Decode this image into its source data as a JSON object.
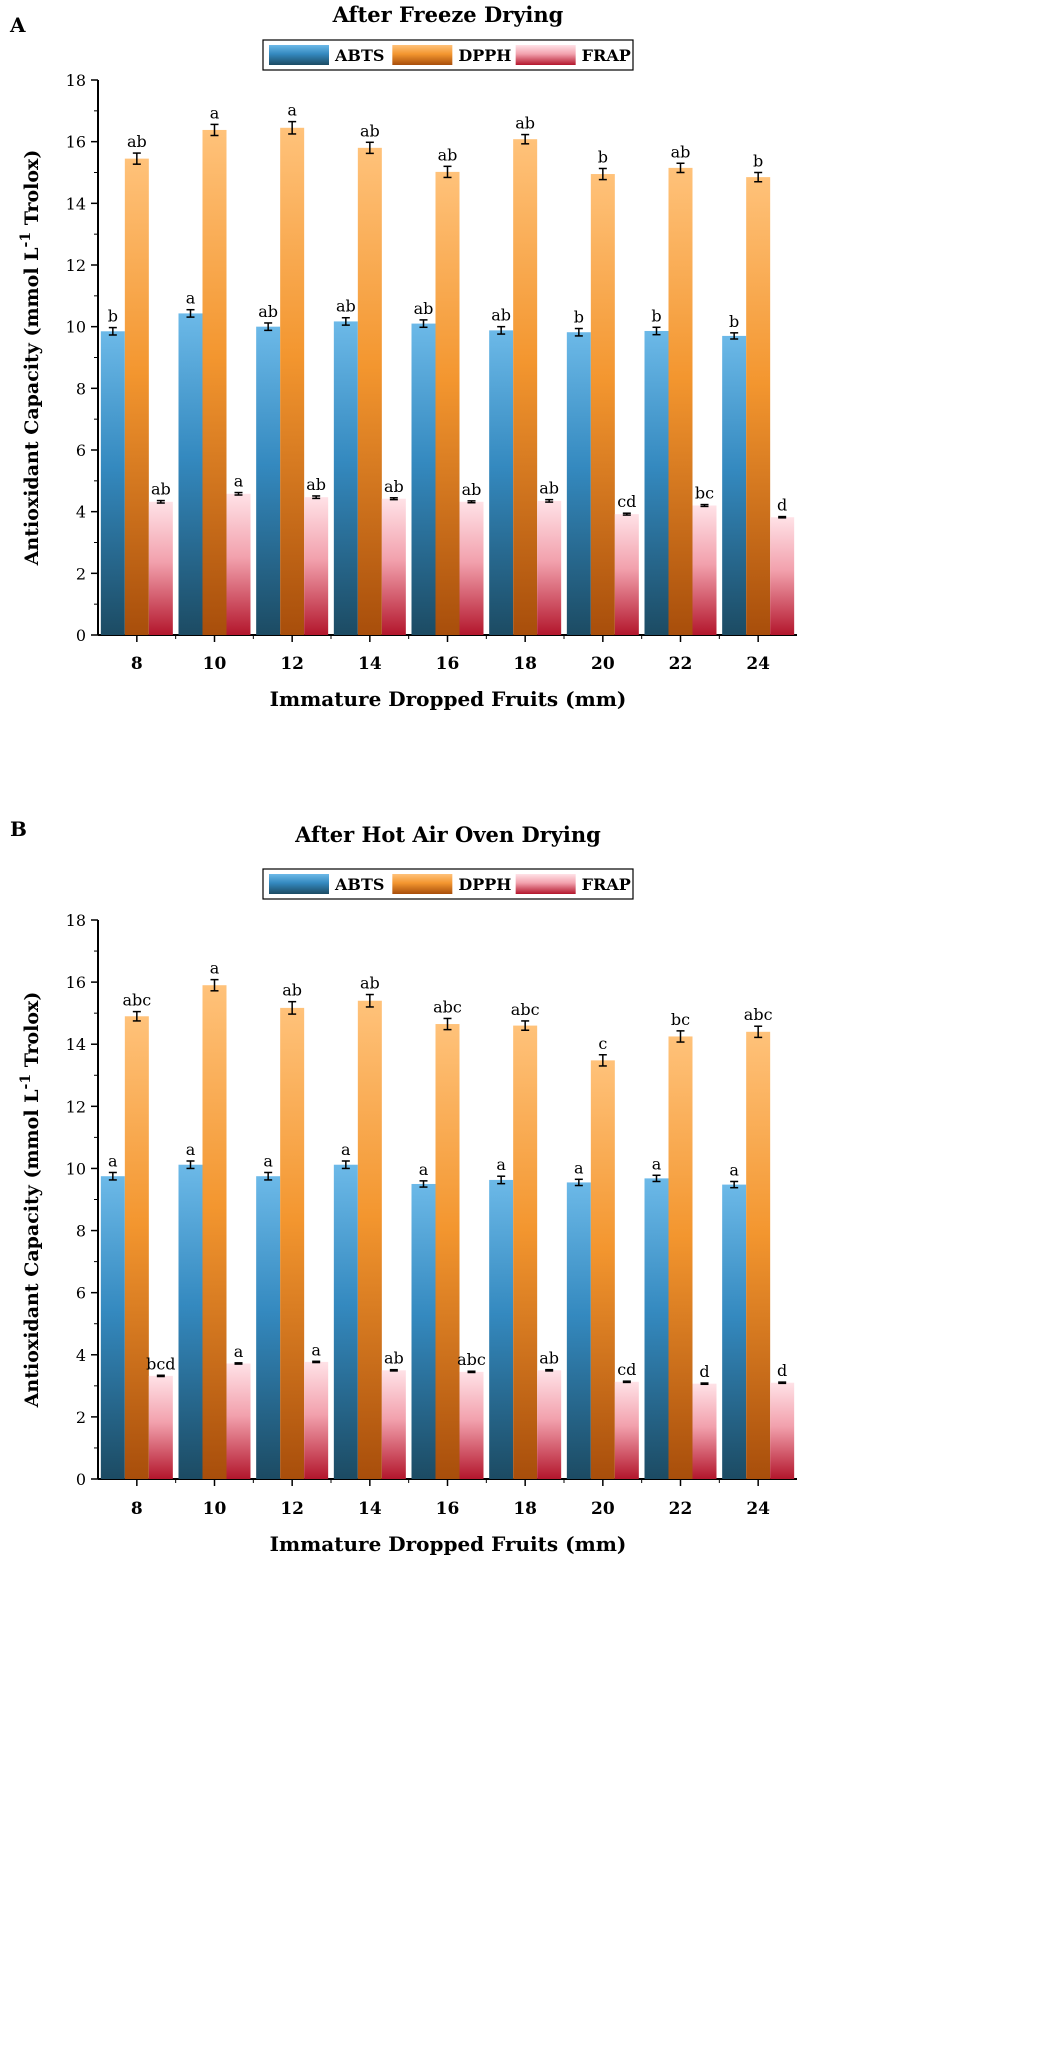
{
  "chart_data": [
    {
      "type": "bar",
      "panel": "A",
      "title": "After Freeze Drying",
      "xlabel": "Immature Dropped Fruits (mm)",
      "ylabel": "Antioxidant Capacity (mmol L",
      "ylabel_sup": "-1",
      "ylabel_end": " Trolox)",
      "ylim": [
        0,
        18
      ],
      "yticks": [
        0,
        2,
        4,
        6,
        8,
        10,
        12,
        14,
        16,
        18
      ],
      "categories": [
        "8",
        "10",
        "12",
        "14",
        "16",
        "18",
        "20",
        "22",
        "24"
      ],
      "legend_position": "top-center",
      "series": [
        {
          "name": "ABTS",
          "values": [
            9.85,
            10.43,
            10.0,
            10.17,
            10.1,
            9.88,
            9.82,
            9.86,
            9.7
          ],
          "errors": [
            0.12,
            0.12,
            0.12,
            0.12,
            0.12,
            0.12,
            0.12,
            0.12,
            0.1
          ],
          "labels": [
            "b",
            "a",
            "ab",
            "ab",
            "ab",
            "ab",
            "b",
            "b",
            "b"
          ]
        },
        {
          "name": "DPPH",
          "values": [
            15.45,
            16.38,
            16.45,
            15.8,
            15.02,
            16.08,
            14.95,
            15.15,
            14.85
          ],
          "errors": [
            0.18,
            0.18,
            0.2,
            0.18,
            0.18,
            0.15,
            0.18,
            0.15,
            0.15
          ],
          "labels": [
            "ab",
            "a",
            "a",
            "ab",
            "ab",
            "ab",
            "b",
            "ab",
            "b"
          ]
        },
        {
          "name": "FRAP",
          "values": [
            4.32,
            4.58,
            4.47,
            4.42,
            4.32,
            4.35,
            3.92,
            4.2,
            3.82
          ],
          "errors": [
            0.04,
            0.04,
            0.04,
            0.03,
            0.03,
            0.04,
            0.03,
            0.03,
            0.02
          ],
          "labels": [
            "ab",
            "a",
            "ab",
            "ab",
            "ab",
            "ab",
            "cd",
            "bc",
            "d"
          ]
        }
      ]
    },
    {
      "type": "bar",
      "panel": "B",
      "title": "After Hot Air Oven Drying",
      "xlabel": "Immature Dropped Fruits (mm)",
      "ylabel": "Antioxidant Capacity (mmol L",
      "ylabel_sup": "-1",
      "ylabel_end": " Trolox)",
      "ylim": [
        0,
        18
      ],
      "yticks": [
        0,
        2,
        4,
        6,
        8,
        10,
        12,
        14,
        16,
        18
      ],
      "categories": [
        "8",
        "10",
        "12",
        "14",
        "16",
        "18",
        "20",
        "22",
        "24"
      ],
      "legend_position": "top-center",
      "series": [
        {
          "name": "ABTS",
          "values": [
            9.75,
            10.12,
            9.75,
            10.12,
            9.5,
            9.63,
            9.55,
            9.68,
            9.48
          ],
          "errors": [
            0.12,
            0.12,
            0.12,
            0.12,
            0.1,
            0.12,
            0.1,
            0.1,
            0.1
          ],
          "labels": [
            "a",
            "a",
            "a",
            "a",
            "a",
            "a",
            "a",
            "a",
            "a"
          ]
        },
        {
          "name": "DPPH",
          "values": [
            14.9,
            15.9,
            15.17,
            15.4,
            14.65,
            14.6,
            13.48,
            14.25,
            14.4
          ],
          "errors": [
            0.15,
            0.18,
            0.2,
            0.2,
            0.18,
            0.15,
            0.18,
            0.18,
            0.18
          ],
          "labels": [
            "abc",
            "a",
            "ab",
            "ab",
            "abc",
            "abc",
            "c",
            "bc",
            "abc"
          ]
        },
        {
          "name": "FRAP",
          "values": [
            3.32,
            3.72,
            3.77,
            3.5,
            3.45,
            3.5,
            3.13,
            3.07,
            3.1
          ],
          "errors": [
            0.02,
            0.02,
            0.02,
            0.02,
            0.02,
            0.02,
            0.02,
            0.02,
            0.02
          ],
          "labels": [
            "bcd",
            "a",
            "a",
            "ab",
            "abc",
            "ab",
            "cd",
            "d",
            "d"
          ]
        }
      ]
    }
  ],
  "colors": {
    "ABTS": {
      "light": "#6cb9e8",
      "mid": "#3489bf",
      "dark": "#1c4b63"
    },
    "DPPH": {
      "light": "#ffc27a",
      "mid": "#f3962f",
      "dark": "#a84e0b"
    },
    "FRAP": {
      "light": "#ffe2e7",
      "mid": "#f2a1ad",
      "dark": "#b3162c"
    },
    "axis": "#000000",
    "background": "#ffffff"
  }
}
